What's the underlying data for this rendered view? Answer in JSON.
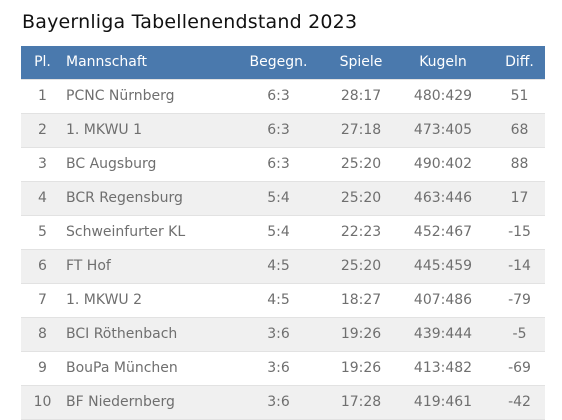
{
  "title": "Bayernliga Tabellenendstand 2023",
  "table": {
    "headers": {
      "pl": "Pl.",
      "team": "Mannschaft",
      "begegn": "Begegn.",
      "spiele": "Spiele",
      "kugeln": "Kugeln",
      "diff": "Diff."
    },
    "rows": [
      {
        "pl": "1",
        "team": "PCNC Nürnberg",
        "begegn": "6:3",
        "spiele": "28:17",
        "kugeln": "480:429",
        "diff": "51"
      },
      {
        "pl": "2",
        "team": "1. MKWU 1",
        "begegn": "6:3",
        "spiele": "27:18",
        "kugeln": "473:405",
        "diff": "68"
      },
      {
        "pl": "3",
        "team": "BC Augsburg",
        "begegn": "6:3",
        "spiele": "25:20",
        "kugeln": "490:402",
        "diff": "88"
      },
      {
        "pl": "4",
        "team": "BCR Regensburg",
        "begegn": "5:4",
        "spiele": "25:20",
        "kugeln": "463:446",
        "diff": "17"
      },
      {
        "pl": "5",
        "team": "Schweinfurter KL",
        "begegn": "5:4",
        "spiele": "22:23",
        "kugeln": "452:467",
        "diff": "-15"
      },
      {
        "pl": "6",
        "team": "FT Hof",
        "begegn": "4:5",
        "spiele": "25:20",
        "kugeln": "445:459",
        "diff": "-14"
      },
      {
        "pl": "7",
        "team": "1. MKWU 2",
        "begegn": "4:5",
        "spiele": "18:27",
        "kugeln": "407:486",
        "diff": "-79"
      },
      {
        "pl": "8",
        "team": "BCI Röthenbach",
        "begegn": "3:6",
        "spiele": "19:26",
        "kugeln": "439:444",
        "diff": "-5"
      },
      {
        "pl": "9",
        "team": "BouPa München",
        "begegn": "3:6",
        "spiele": "19:26",
        "kugeln": "413:482",
        "diff": "-69"
      },
      {
        "pl": "10",
        "team": "BF Niedernberg",
        "begegn": "3:6",
        "spiele": "17:28",
        "kugeln": "419:461",
        "diff": "-42"
      }
    ]
  },
  "colors": {
    "header_bg": "#4a79ad",
    "header_text": "#ffffff",
    "row_alt_bg": "#f0f0f0",
    "cell_text": "#6f6f6f"
  }
}
